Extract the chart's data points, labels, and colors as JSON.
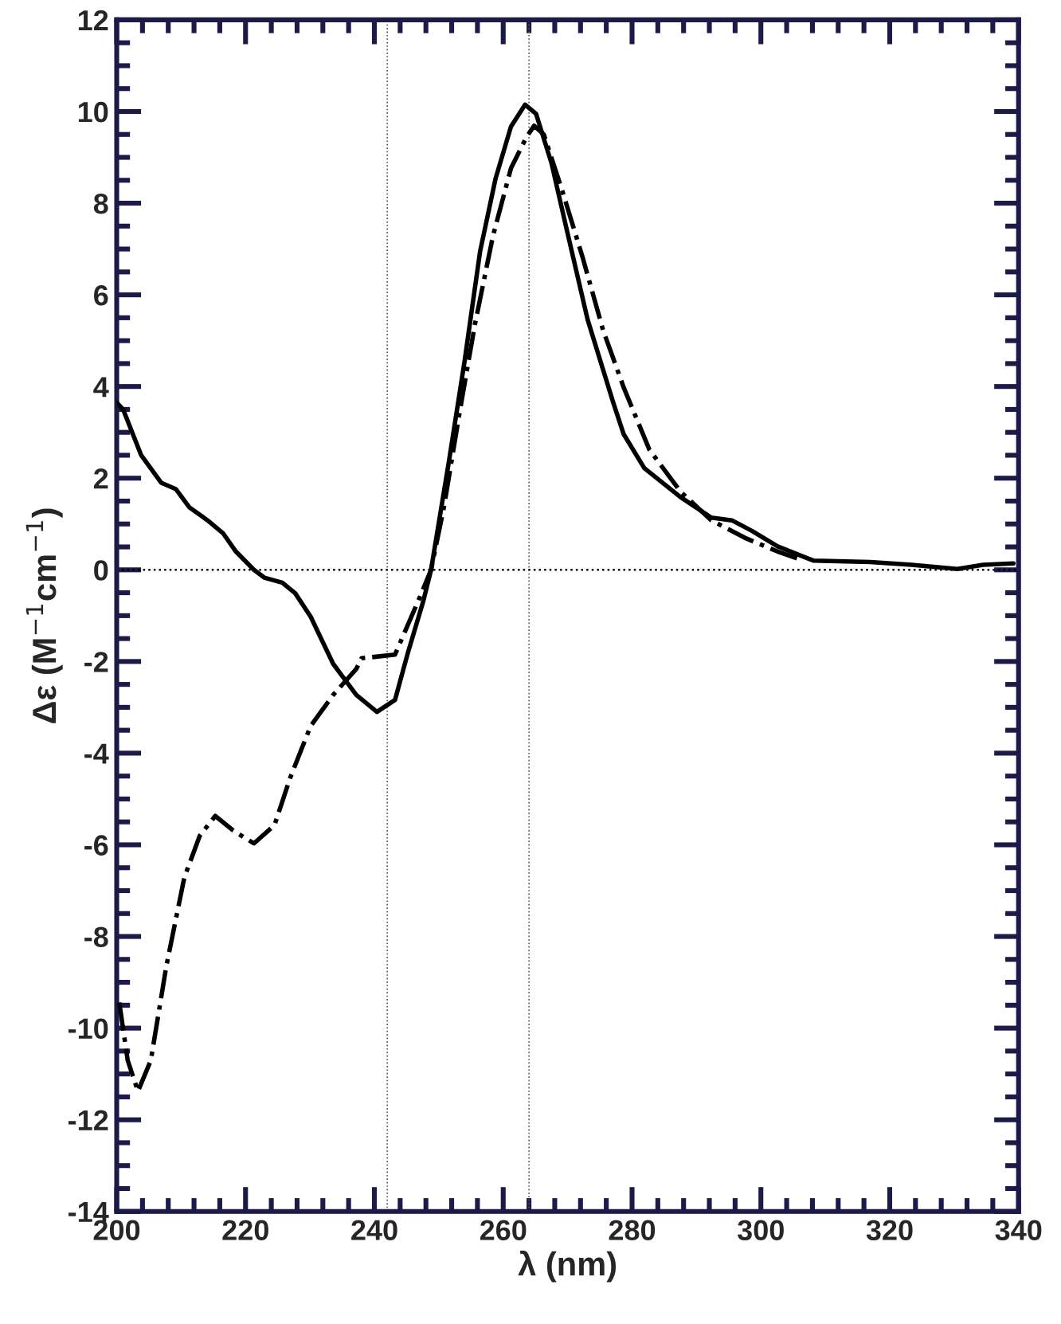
{
  "chart_data": {
    "type": "line",
    "xlabel": "λ (nm)",
    "ylabel": "Δε (M$^{−1}$cm$^{−1}$)",
    "xlim": [
      200,
      340
    ],
    "xticks": [
      200,
      220,
      240,
      260,
      280,
      300,
      320,
      340
    ],
    "ylim": [
      -14,
      12
    ],
    "yticks": [
      -14,
      -12,
      -10,
      -8,
      -6,
      -4,
      -2,
      0,
      2,
      4,
      6,
      8,
      10,
      12
    ],
    "grid": false,
    "legend": false,
    "marker": "none",
    "ref_lines": [
      {
        "axis": "y",
        "value": 0,
        "color": "#000000",
        "line_style": "dotted"
      },
      {
        "axis": "x",
        "value": 242,
        "color": "#555555",
        "line_style": "dotted"
      },
      {
        "axis": "x",
        "value": 264,
        "color": "#555555",
        "line_style": "dotted"
      }
    ],
    "series": [
      {
        "color": "#000000",
        "line_style": "solid",
        "x": [
          200,
          201,
          203.8,
          206.9,
          209.2,
          211.3,
          214.1,
          216.5,
          218.5,
          221.3,
          222.9,
          225.7,
          227.7,
          230.1,
          233.6,
          234.8,
          237.2,
          240.4,
          243.2,
          245.2,
          247.6,
          248.8,
          251.6,
          254,
          256.4,
          258.8,
          261.2,
          263.4,
          265.1,
          267.5,
          269.9,
          273.1,
          277.1,
          278.7,
          281.9,
          287.5,
          292.3,
          295.5,
          298.6,
          302.6,
          308.2,
          317,
          323.4,
          330.5,
          334.5,
          339.2
        ],
        "values": [
          3.65,
          3.5,
          2.5,
          1.9,
          1.76,
          1.36,
          1.08,
          0.8,
          0.4,
          0,
          -0.17,
          -0.28,
          -0.51,
          -1.02,
          -2.05,
          -2.28,
          -2.73,
          -3.1,
          -2.84,
          -1.81,
          -0.68,
          0,
          2.39,
          4.55,
          6.94,
          8.53,
          9.67,
          10.15,
          9.95,
          8.87,
          7.4,
          5.46,
          3.64,
          2.96,
          2.22,
          1.59,
          1.14,
          1.08,
          0.85,
          0.51,
          0.2,
          0.17,
          0.11,
          0.02,
          0.11,
          0.14
        ]
      },
      {
        "color": "#000000",
        "line_style": "dashdot",
        "x": [
          200.4,
          201.7,
          203.3,
          205.3,
          207.7,
          210.5,
          212.9,
          215.3,
          218.1,
          221.3,
          224.5,
          226.9,
          230.1,
          233.6,
          237.2,
          238,
          243.2,
          246.8,
          248.8,
          250.8,
          253.2,
          255.6,
          258.4,
          261.2,
          263.6,
          264.8,
          266.3,
          269.1,
          272.3,
          275.5,
          278.7,
          282.7,
          287.5,
          292.3,
          297.8,
          302.6,
          306.6
        ],
        "values": [
          -9.44,
          -10.7,
          -11.38,
          -10.7,
          -8.65,
          -6.71,
          -5.8,
          -5.37,
          -5.69,
          -5.97,
          -5.57,
          -4.55,
          -3.41,
          -2.73,
          -2.16,
          -1.93,
          -1.85,
          -0.68,
          0,
          1.37,
          3.41,
          5.35,
          7.28,
          8.76,
          9.44,
          9.69,
          9.5,
          8.3,
          6.83,
          5.23,
          3.98,
          2.62,
          1.71,
          1.08,
          0.68,
          0.4,
          0.2
        ]
      }
    ]
  }
}
